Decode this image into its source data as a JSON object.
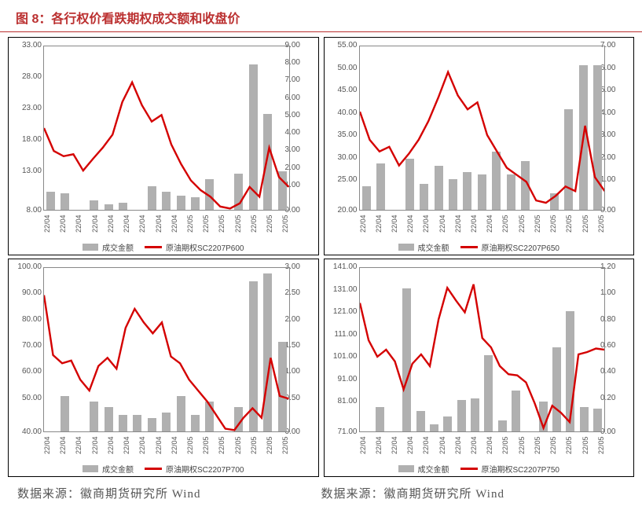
{
  "title": "图 8：各行权价看跌期权成交额和收盘价",
  "source_left": "数据来源：徽商期货研究所 Wind",
  "source_right": "数据来源：徽商期货研究所 Wind",
  "legend_bar_label": "成交金额",
  "x_categories": [
    "22/04",
    "22/04",
    "22/04",
    "22/04",
    "22/04",
    "22/04",
    "22/04",
    "22/04",
    "22/04",
    "22/05",
    "22/05",
    "22/05",
    "22/05",
    "22/05",
    "22/05",
    "22/05"
  ],
  "panels": [
    {
      "legend_line_label": "原油期权SC2207P600",
      "left_axis": {
        "min": 8.0,
        "max": 33.0,
        "ticks": [
          "33.00",
          "28.00",
          "23.00",
          "18.00",
          "13.00",
          "8.00"
        ]
      },
      "right_axis": {
        "min": 0.0,
        "max": 9.0,
        "ticks": [
          "9.00",
          "8.00",
          "7.00",
          "6.00",
          "5.00",
          "4.00",
          "3.00",
          "2.00",
          "1.00",
          "0.00"
        ]
      },
      "bars": [
        1.0,
        0.9,
        0.0,
        0.5,
        0.3,
        0.4,
        0.0,
        1.3,
        1.0,
        0.8,
        0.7,
        1.7,
        0.0,
        2.0,
        8.0,
        5.3,
        2.1
      ],
      "line": [
        20.5,
        17.0,
        16.2,
        16.5,
        14.0,
        15.8,
        17.5,
        19.5,
        24.5,
        27.5,
        24.0,
        21.5,
        22.5,
        18.0,
        15.0,
        12.5,
        11.0,
        10.0,
        8.5,
        8.2,
        9.0,
        11.5,
        10.0,
        17.5,
        13.0,
        11.5
      ],
      "colors": {
        "bar": "#b0b0b0",
        "line": "#d40000",
        "line_width": 2.4
      }
    },
    {
      "legend_line_label": "原油期权SC2207P650",
      "left_axis": {
        "min": 20.0,
        "max": 55.0,
        "ticks": [
          "55.00",
          "50.00",
          "45.00",
          "40.00",
          "35.00",
          "30.00",
          "25.00",
          "20.00"
        ]
      },
      "right_axis": {
        "min": 0.0,
        "max": 7.0,
        "ticks": [
          "7.00",
          "6.00",
          "5.00",
          "4.00",
          "3.00",
          "2.00",
          "1.00",
          "0.00"
        ]
      },
      "bars": [
        1.0,
        2.0,
        0.0,
        2.2,
        1.1,
        1.9,
        1.3,
        1.6,
        1.5,
        2.5,
        1.5,
        2.1,
        0.0,
        0.7,
        4.3,
        6.2,
        6.2
      ],
      "line": [
        41.0,
        35.0,
        32.5,
        33.5,
        29.5,
        32.0,
        35.0,
        39.0,
        44.0,
        49.5,
        44.5,
        41.5,
        43.0,
        36.0,
        32.5,
        29.0,
        27.5,
        26.0,
        22.0,
        21.5,
        23.0,
        25.0,
        24.0,
        38.0,
        27.0,
        24.0
      ],
      "colors": {
        "bar": "#b0b0b0",
        "line": "#d40000",
        "line_width": 2.4
      }
    },
    {
      "legend_line_label": "原油期权SC2207P700",
      "left_axis": {
        "min": 40.0,
        "max": 100.0,
        "ticks": [
          "100.00",
          "90.00",
          "80.00",
          "70.00",
          "60.00",
          "50.00",
          "40.00"
        ]
      },
      "right_axis": {
        "min": 0.0,
        "max": 3.0,
        "ticks": [
          "3.00",
          "2.50",
          "2.00",
          "1.50",
          "1.00",
          "0.50",
          "0.00"
        ]
      },
      "bars": [
        0.0,
        0.65,
        0.0,
        0.55,
        0.45,
        0.3,
        0.3,
        0.25,
        0.35,
        0.65,
        0.3,
        0.55,
        0.0,
        0.45,
        2.75,
        2.9,
        1.65
      ],
      "line": [
        90.0,
        68.0,
        65.0,
        66.0,
        59.0,
        55.0,
        64.0,
        67.0,
        63.0,
        78.0,
        85.0,
        80.0,
        76.0,
        80.0,
        67.5,
        65.0,
        59.0,
        55.0,
        51.0,
        46.0,
        41.0,
        40.5,
        45.0,
        48.5,
        45.0,
        67.0,
        53.0,
        52.0
      ],
      "colors": {
        "bar": "#b0b0b0",
        "line": "#d40000",
        "line_width": 2.4
      }
    },
    {
      "legend_line_label": "原油期权SC2207P750",
      "left_axis": {
        "min": 71.0,
        "max": 141.0,
        "ticks": [
          "141.00",
          "131.00",
          "121.00",
          "111.00",
          "101.00",
          "91.00",
          "81.00",
          "71.00"
        ]
      },
      "right_axis": {
        "min": 0.0,
        "max": 1.2,
        "ticks": [
          "1.20",
          "1.00",
          "0.80",
          "0.60",
          "0.40",
          "0.20",
          "0.00"
        ]
      },
      "bars": [
        0.0,
        0.18,
        0.0,
        1.05,
        0.15,
        0.05,
        0.11,
        0.23,
        0.24,
        0.56,
        0.08,
        0.3,
        0.0,
        0.22,
        0.62,
        0.88,
        0.18,
        0.17
      ],
      "line": [
        126.0,
        110.0,
        103.0,
        106.0,
        101.0,
        89.0,
        100.0,
        104.0,
        99.0,
        119.0,
        132.5,
        127.0,
        122.0,
        134.0,
        111.0,
        107.0,
        99.0,
        95.5,
        95.0,
        92.0,
        83.0,
        72.5,
        82.0,
        79.0,
        75.0,
        104.0,
        105.0,
        106.5,
        106.0
      ],
      "colors": {
        "bar": "#b0b0b0",
        "line": "#d40000",
        "line_width": 2.4
      }
    }
  ]
}
